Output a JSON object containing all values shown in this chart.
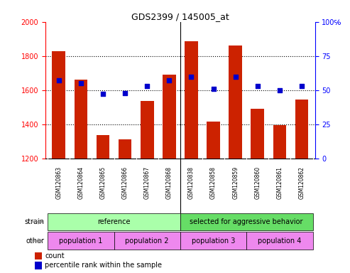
{
  "title": "GDS2399 / 145005_at",
  "samples": [
    "GSM120863",
    "GSM120864",
    "GSM120865",
    "GSM120866",
    "GSM120867",
    "GSM120868",
    "GSM120838",
    "GSM120858",
    "GSM120859",
    "GSM120860",
    "GSM120861",
    "GSM120862"
  ],
  "counts": [
    1830,
    1660,
    1335,
    1310,
    1535,
    1690,
    1885,
    1415,
    1860,
    1490,
    1395,
    1545
  ],
  "percentile_ranks": [
    57,
    55,
    47,
    48,
    53,
    57,
    60,
    51,
    60,
    53,
    50,
    53
  ],
  "ymin": 1200,
  "ymax": 2000,
  "yright_min": 0,
  "yright_max": 100,
  "yticks_left": [
    1200,
    1400,
    1600,
    1800,
    2000
  ],
  "yticks_right": [
    0,
    25,
    50,
    75,
    100
  ],
  "bar_color": "#cc2200",
  "dot_color": "#0000cc",
  "strain_groups": [
    {
      "label": "reference",
      "start": 0,
      "end": 6,
      "color": "#aaffaa"
    },
    {
      "label": "selected for aggressive behavior",
      "start": 6,
      "end": 12,
      "color": "#66dd66"
    }
  ],
  "other_groups": [
    {
      "label": "population 1",
      "start": 0,
      "end": 3,
      "color": "#ee88ee"
    },
    {
      "label": "population 2",
      "start": 3,
      "end": 6,
      "color": "#ee88ee"
    },
    {
      "label": "population 3",
      "start": 6,
      "end": 9,
      "color": "#ee88ee"
    },
    {
      "label": "population 4",
      "start": 9,
      "end": 12,
      "color": "#ee88ee"
    }
  ],
  "strain_label": "strain",
  "other_label": "other",
  "legend_count_label": "count",
  "legend_pct_label": "percentile rank within the sample",
  "divider_at": 5.5,
  "plot_bg_color": "#ffffff",
  "xtick_bg_color": "#cccccc"
}
